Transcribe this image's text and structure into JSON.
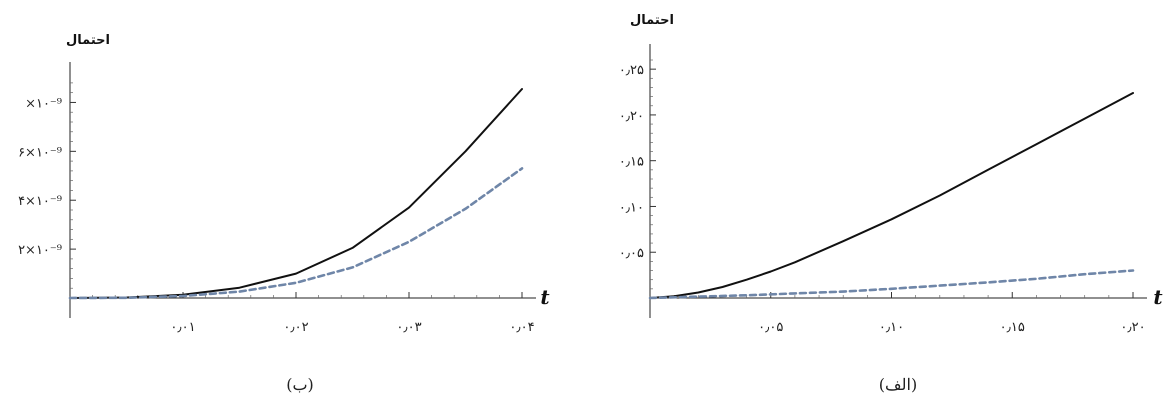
{
  "chart_data": [
    {
      "type": "line",
      "panel_label": "(ب)",
      "ylabel": "احتمال",
      "xlabel": "t",
      "xlim": [
        0,
        0.04
      ],
      "ylim": [
        0,
        9e-09
      ],
      "x_ticks": [
        {
          "value": 0.01,
          "label": "۰٫۰۱"
        },
        {
          "value": 0.02,
          "label": "۰٫۰۲"
        },
        {
          "value": 0.03,
          "label": "۰٫۰۳"
        },
        {
          "value": 0.04,
          "label": "۰٫۰۴"
        }
      ],
      "y_ticks": [
        {
          "value": 2e-09,
          "label": "۲×۱۰⁻⁹"
        },
        {
          "value": 4e-09,
          "label": "۴×۱۰⁻⁹"
        },
        {
          "value": 6e-09,
          "label": "۶×۱۰⁻⁹"
        },
        {
          "value": 8e-09,
          "label": "×۱۰⁻⁹"
        }
      ],
      "series": [
        {
          "style": "solid",
          "color": "#111111",
          "x": [
            0,
            0.005,
            0.01,
            0.015,
            0.02,
            0.025,
            0.03,
            0.035,
            0.04
          ],
          "y": [
            0,
            2e-11,
            1.3e-10,
            4.2e-10,
            1e-09,
            2.05e-09,
            3.7e-09,
            6e-09,
            8.55e-09
          ]
        },
        {
          "style": "dashed",
          "color": "#6f86a8",
          "x": [
            0,
            0.005,
            0.01,
            0.015,
            0.02,
            0.025,
            0.03,
            0.035,
            0.04
          ],
          "y": [
            0,
            1e-11,
            8e-11,
            2.6e-10,
            6.2e-10,
            1.25e-09,
            2.3e-09,
            3.65e-09,
            5.3e-09
          ]
        }
      ]
    },
    {
      "type": "line",
      "panel_label": "(الف)",
      "ylabel": "احتمال",
      "xlabel": "t",
      "xlim": [
        0,
        0.2
      ],
      "ylim": [
        0,
        0.26
      ],
      "x_ticks": [
        {
          "value": 0.05,
          "label": "۰٫۰۵"
        },
        {
          "value": 0.1,
          "label": "۰٫۱۰"
        },
        {
          "value": 0.15,
          "label": "۰٫۱۵"
        },
        {
          "value": 0.2,
          "label": "۰٫۲۰"
        }
      ],
      "y_ticks": [
        {
          "value": 0.05,
          "label": "۰٫۰۵"
        },
        {
          "value": 0.1,
          "label": "۰٫۱۰"
        },
        {
          "value": 0.15,
          "label": "۰٫۱۵"
        },
        {
          "value": 0.2,
          "label": "۰٫۲۰"
        },
        {
          "value": 0.25,
          "label": "۰٫۲۵"
        }
      ],
      "series": [
        {
          "style": "solid",
          "color": "#111111",
          "x": [
            0,
            0.01,
            0.02,
            0.03,
            0.04,
            0.05,
            0.06,
            0.08,
            0.1,
            0.12,
            0.14,
            0.16,
            0.18,
            0.2
          ],
          "y": [
            0,
            0.002,
            0.006,
            0.012,
            0.02,
            0.029,
            0.039,
            0.062,
            0.086,
            0.112,
            0.14,
            0.168,
            0.196,
            0.224
          ]
        },
        {
          "style": "dashed",
          "color": "#6f86a8",
          "x": [
            0,
            0.02,
            0.04,
            0.06,
            0.08,
            0.1,
            0.12,
            0.14,
            0.16,
            0.18,
            0.2
          ],
          "y": [
            0,
            0.0015,
            0.003,
            0.005,
            0.007,
            0.01,
            0.0135,
            0.017,
            0.021,
            0.026,
            0.03
          ]
        }
      ]
    }
  ]
}
